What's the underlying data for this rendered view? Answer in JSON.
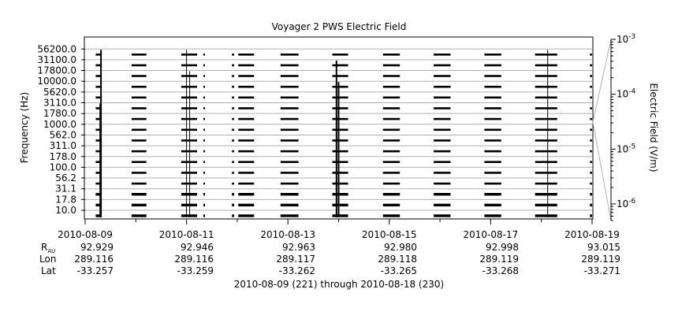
{
  "chart_data": {
    "type": "heatmap",
    "title": "Voyager 2 PWS Electric Field",
    "ylabel": "Frequency (Hz)",
    "colorbar_label": "Electric Field (V/m)",
    "colorbar_scale": "log",
    "colorbar_range": [
      5e-07,
      0.001
    ],
    "colorbar_ticks": [
      {
        "value": 0.001,
        "base": "10",
        "exp": "-3"
      },
      {
        "value": 0.0001,
        "base": "10",
        "exp": "-4"
      },
      {
        "value": 1e-05,
        "base": "10",
        "exp": "-5"
      },
      {
        "value": 1e-06,
        "base": "10",
        "exp": "-6"
      }
    ],
    "channels": [
      "10.0",
      "17.8",
      "31.1",
      "56.2",
      "100.0",
      "178.0",
      "311.0",
      "562.0",
      "1000.0",
      "1780.0",
      "3110.0",
      "5620.0",
      "10000.0",
      "17800.0",
      "31100.0",
      "56200.0"
    ],
    "x_start": "2010-08-09",
    "x_end": "2010-08-19",
    "x_ticks": [
      "2010-08-09",
      "2010-08-11",
      "2010-08-13",
      "2010-08-15",
      "2010-08-17",
      "2010-08-19"
    ],
    "data_days": [
      [
        "2010-08-09 05:00",
        "2010-08-09 07:30"
      ],
      [
        "2010-08-09 22:00",
        "2010-08-10 05:00"
      ],
      [
        "2010-08-10 21:30",
        "2010-08-11 05:00"
      ],
      [
        "2010-08-11 08:00",
        "2010-08-11 08:45"
      ],
      [
        "2010-08-11 21:30",
        "2010-08-11 22:30"
      ],
      [
        "2010-08-12 00:30",
        "2010-08-12 08:00"
      ],
      [
        "2010-08-12 20:30",
        "2010-08-13 05:00"
      ],
      [
        "2010-08-13 21:00",
        "2010-08-14 04:30"
      ],
      [
        "2010-08-14 21:00",
        "2010-08-15 05:00"
      ],
      [
        "2010-08-15 21:00",
        "2010-08-16 05:00"
      ],
      [
        "2010-08-16 21:00",
        "2010-08-17 05:00"
      ],
      [
        "2010-08-17 21:00",
        "2010-08-18 07:30"
      ],
      [
        "2010-08-18 23:00",
        "2010-08-19 00:00"
      ]
    ],
    "spikes": [
      {
        "t": "2010-08-09 07:30",
        "top_channel": 15,
        "strong": true
      },
      {
        "t": "2010-08-09 07:10",
        "top_channel": 10,
        "strong": true
      },
      {
        "t": "2010-08-11 00:00",
        "top_channel": 15,
        "strong": false
      },
      {
        "t": "2010-08-11 01:30",
        "top_channel": 13,
        "strong": false
      },
      {
        "t": "2010-08-13 23:00",
        "top_channel": 14,
        "strong": true
      },
      {
        "t": "2010-08-14 00:00",
        "top_channel": 12,
        "strong": true
      },
      {
        "t": "2010-08-18 03:00",
        "top_channel": 15,
        "strong": false
      }
    ]
  },
  "annotations": {
    "row_labels": {
      "r": "R",
      "r_sub": "AU",
      "lon": "Lon",
      "lat": "Lat"
    },
    "columns": [
      {
        "r": "92.929",
        "lon": "289.116",
        "lat": "-33.257"
      },
      {
        "r": "92.946",
        "lon": "289.116",
        "lat": "-33.259"
      },
      {
        "r": "92.963",
        "lon": "289.117",
        "lat": "-33.262"
      },
      {
        "r": "92.980",
        "lon": "289.118",
        "lat": "-33.265"
      },
      {
        "r": "92.998",
        "lon": "289.119",
        "lat": "-33.268"
      },
      {
        "r": "93.015",
        "lon": "289.119",
        "lat": "-33.271"
      }
    ]
  },
  "footer": "2010-08-09 (221) through 2010-08-18 (230)",
  "colors": {
    "background": "#ffffff",
    "trace": "#000000",
    "gridline": "#b0b0b0",
    "axis": "#000000"
  }
}
